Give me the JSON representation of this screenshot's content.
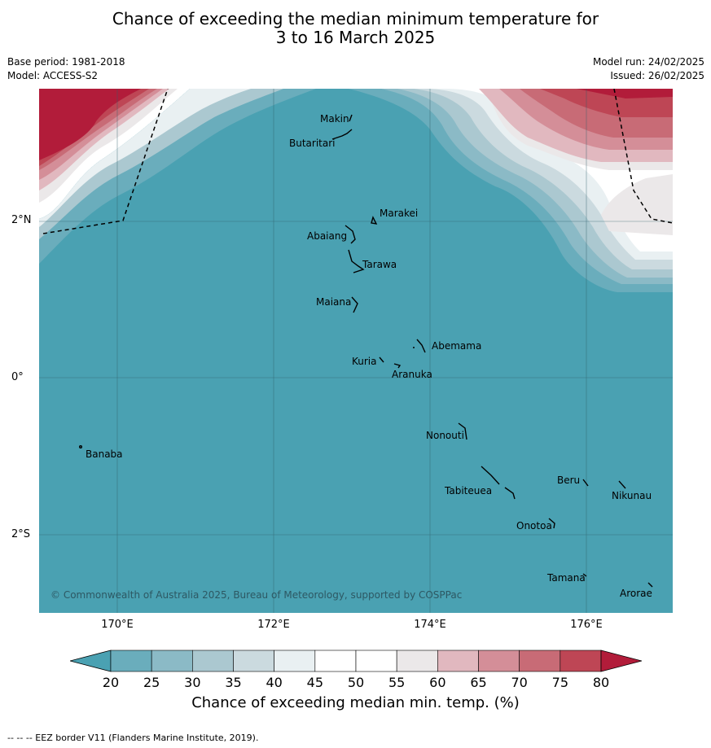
{
  "title_line1": "Chance of exceeding the median minimum temperature for",
  "title_line2": "3 to 16 March 2025",
  "base_period": "Base period: 1981-2018",
  "model": "Model: ACCESS-S2",
  "model_run": "Model run: 24/02/2025",
  "issued": "Issued: 26/02/2025",
  "lat_ticks": [
    "2°N",
    "0°",
    "2°S"
  ],
  "lon_ticks": [
    "170°E",
    "172°E",
    "174°E",
    "176°E"
  ],
  "islands": {
    "makin": "Makin",
    "butaritari": "Butaritari",
    "marakei": "Marakei",
    "abaiang": "Abaiang",
    "tarawa": "Tarawa",
    "maiana": "Maiana",
    "abemama": "Abemama",
    "kuria": "Kuria",
    "aranuka": "Aranuka",
    "nonouti": "Nonouti",
    "banaba": "Banaba",
    "beru": "Beru",
    "nikunau": "Nikunau",
    "tabiteuea": "Tabiteuea",
    "onotoa": "Onotoa",
    "tamana": "Tamana",
    "arorae": "Arorae"
  },
  "copyright": "© Commonwealth of Australia 2025, Bureau of Meteorology, supported by COSPPac",
  "colorbar": {
    "ticks": [
      "20",
      "25",
      "30",
      "35",
      "40",
      "45",
      "50",
      "55",
      "60",
      "65",
      "70",
      "75",
      "80"
    ],
    "label": "Chance of exceeding median min. temp. (%)",
    "colors": [
      "#4aa1b2",
      "#6aadbc",
      "#8bbac6",
      "#abc8d0",
      "#cbdadf",
      "#e9f0f2",
      "#ffffff",
      "#ffffff",
      "#ebe8e9",
      "#e1b8bf",
      "#d48e98",
      "#c86b76",
      "#be4655",
      "#b21c3a"
    ]
  },
  "footer": "--  --  -- EEZ border V11 (Flanders Marine Institute, 2019)."
}
